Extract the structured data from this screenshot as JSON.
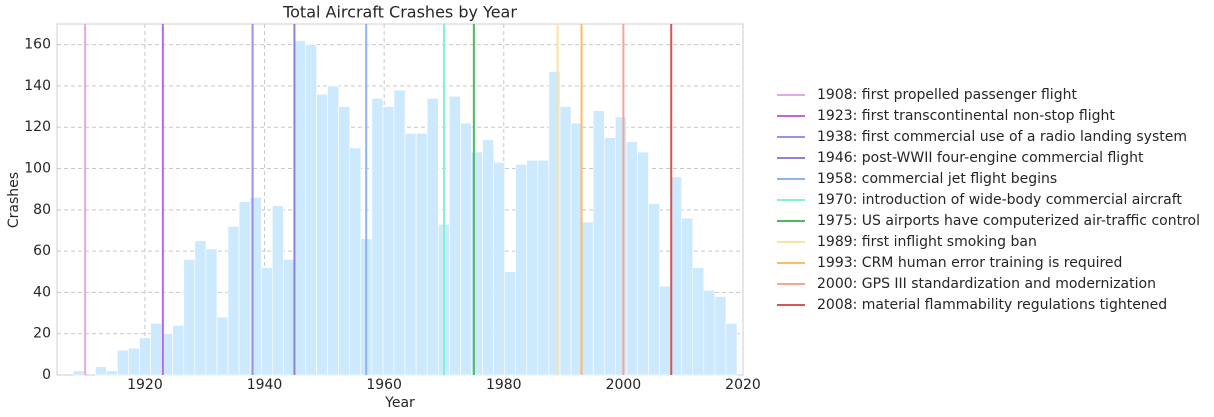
{
  "chart_data": {
    "type": "histogram",
    "title": "Total Aircraft Crashes by Year",
    "xlabel": "Year",
    "ylabel": "Crashes",
    "bins": [
      1908,
      1909.85,
      1911.7,
      1913.55,
      1915.4,
      1917.25,
      1919.1,
      1920.95,
      1922.8,
      1924.65,
      1926.5,
      1928.35,
      1930.2,
      1932.05,
      1933.9,
      1935.75,
      1937.6,
      1939.45,
      1941.3,
      1943.15,
      1945,
      1946.85,
      1948.7,
      1950.55,
      1952.4,
      1954.25,
      1956.1,
      1957.95,
      1959.8,
      1961.65,
      1963.5,
      1965.35,
      1967.2,
      1969.05,
      1970.9,
      1972.75,
      1974.6,
      1976.45,
      1978.3,
      1980.15,
      1982,
      1983.85,
      1985.7,
      1987.55,
      1989.4,
      1991.25,
      1993.1,
      1994.95,
      1996.8,
      1998.65,
      2000.5,
      2002.35,
      2004.2,
      2006.05,
      2007.9,
      2009.75,
      2011.6,
      2013.45,
      2015.3,
      2017.15,
      2019
    ],
    "counts": [
      2,
      0,
      4,
      2,
      12,
      13,
      18,
      25,
      20,
      24,
      56,
      65,
      61,
      28,
      72,
      84,
      86,
      52,
      82,
      56,
      162,
      160,
      136,
      140,
      130,
      110,
      66,
      134,
      130,
      138,
      117,
      117,
      134,
      73,
      135,
      122,
      108,
      114,
      103,
      50,
      102,
      104,
      104,
      147,
      130,
      122,
      74,
      128,
      115,
      125,
      113,
      108,
      83,
      43,
      96,
      76,
      52,
      41,
      38,
      25
    ],
    "color": "#cde9fd",
    "events": [
      {
        "x": 1910,
        "label": "1908: first propelled passenger flight",
        "color": "#e4a8e4"
      },
      {
        "x": 1923,
        "label": "1923: first transcontinental non-stop flight",
        "color": "#b868e0"
      },
      {
        "x": 1938,
        "label": "1938: first commercial use of a radio landing system",
        "color": "#9b8ff2"
      },
      {
        "x": 1945,
        "label": "1946: post-WWII four-engine commercial flight",
        "color": "#8b84d4"
      },
      {
        "x": 1957,
        "label": "1958: commercial jet flight begins",
        "color": "#8fb2f0"
      },
      {
        "x": 1970,
        "label": "1970: introduction of wide-body commercial aircraft",
        "color": "#80f5d2"
      },
      {
        "x": 1975,
        "label": "1975: US airports have computerized air-traffic control",
        "color": "#4cbb5c"
      },
      {
        "x": 1989,
        "label": "1989: first inflight smoking ban",
        "color": "#f9e3a2"
      },
      {
        "x": 1993,
        "label": "1993: CRM human error training is required",
        "color": "#ffba62"
      },
      {
        "x": 2000,
        "label": "2000: GPS III standardization and modernization",
        "color": "#f6a494"
      },
      {
        "x": 2008,
        "label": "2008: material flammability regulations tightened",
        "color": "#d65454"
      }
    ],
    "xlim": [
      1905.3,
      2020
    ],
    "ylim": [
      0,
      170
    ],
    "xticks": [
      1920,
      1940,
      1960,
      1980,
      2000,
      2020
    ],
    "yticks": [
      0,
      20,
      40,
      60,
      80,
      100,
      120,
      140,
      160
    ],
    "grid": true
  }
}
